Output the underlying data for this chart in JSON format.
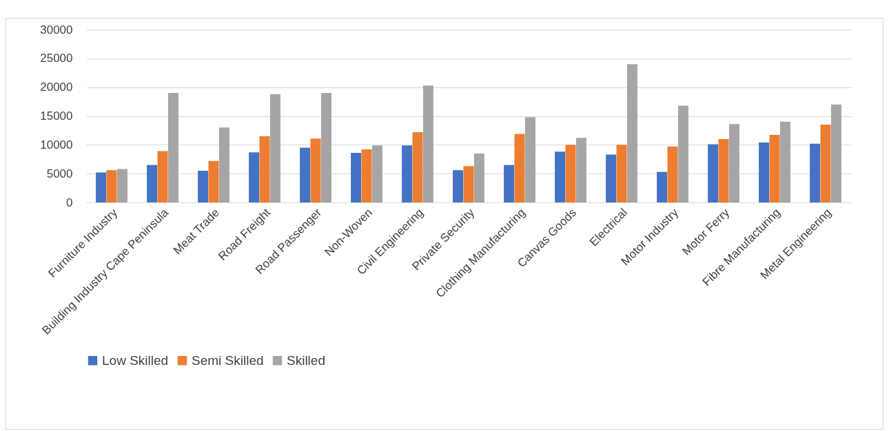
{
  "chart_data": {
    "type": "bar",
    "categories": [
      "Furniture Industry",
      "Building Industry Cape Peninsula",
      "Meat Trade",
      "Road Freight",
      "Road Passenger",
      "Non-Woven",
      "Civil Engineering",
      "Private Security",
      "Clothing Manufacturing",
      "Canvas Goods",
      "Electrical",
      "Motor Industry",
      "Motor Ferry",
      "Fibre Manufacturing",
      "Metal Engineering"
    ],
    "series": [
      {
        "name": "Low Skilled",
        "color": "#4472c4",
        "values": [
          5200,
          6500,
          5500,
          8700,
          9500,
          8600,
          9900,
          5600,
          6500,
          8800,
          8300,
          5300,
          10100,
          10400,
          10200
        ]
      },
      {
        "name": "Semi Skilled",
        "color": "#ed7d31",
        "values": [
          5600,
          8900,
          7200,
          11500,
          11100,
          9200,
          12200,
          6300,
          11900,
          10000,
          10000,
          9700,
          11000,
          11700,
          13500
        ]
      },
      {
        "name": "Skilled",
        "color": "#a5a5a5",
        "values": [
          5800,
          19000,
          13000,
          18800,
          19000,
          9900,
          20300,
          8500,
          14800,
          11200,
          24000,
          16800,
          13600,
          14000,
          17000
        ]
      }
    ],
    "ylim": [
      0,
      30000
    ],
    "yticks": [
      0,
      5000,
      10000,
      15000,
      20000,
      25000,
      30000
    ],
    "grid": "y",
    "legend": "bottom"
  }
}
